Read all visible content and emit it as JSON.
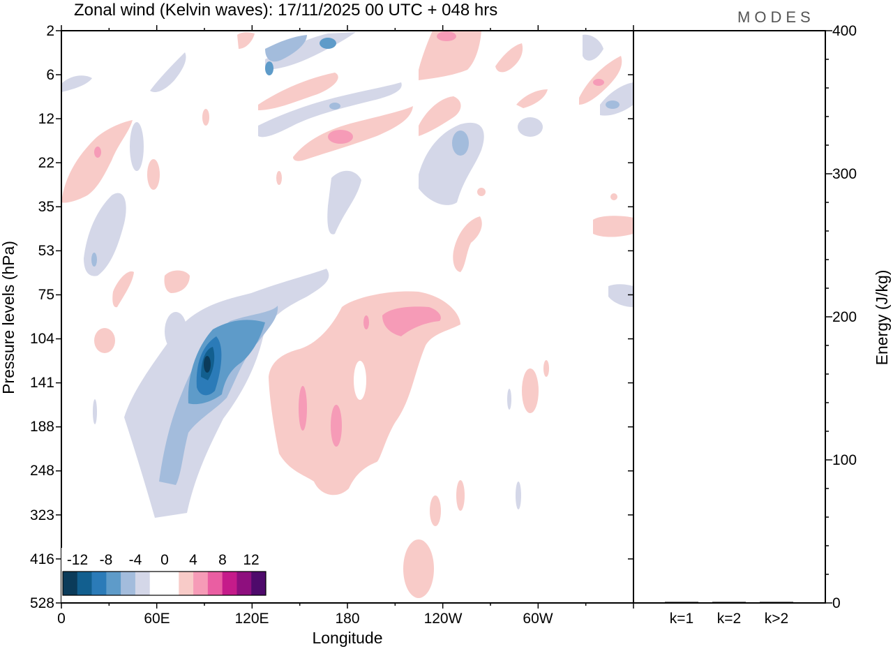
{
  "chart_data": {
    "type": "heatmap",
    "title": "Zonal wind (Kelvin waves):  17/11/2025  00 UTC  + 048 hrs",
    "brand": "MODES",
    "xlabel": "Longitude",
    "ylabel": "Pressure levels (hPa)",
    "y2label": "Energy (J/kg)",
    "x_ticks": [
      "0",
      "60E",
      "120E",
      "180",
      "120W",
      "60W"
    ],
    "y_ticks": [
      "2",
      "6",
      "12",
      "22",
      "35",
      "53",
      "75",
      "104",
      "141",
      "188",
      "248",
      "323",
      "416",
      "528"
    ],
    "y2_ticks": [
      "0",
      "100",
      "200",
      "300",
      "400"
    ],
    "y2lim": [
      0,
      400
    ],
    "energy_bars": {
      "categories": [
        "k=1",
        "k=2",
        "k>2"
      ],
      "values": [
        0.4,
        0.3,
        0.3
      ]
    },
    "colorbar": {
      "labels": [
        "-12",
        "-8",
        "-4",
        "0",
        "4",
        "8",
        "12"
      ],
      "colors": [
        "#0b3b5a",
        "#125f8f",
        "#2b7bb8",
        "#5e9bc9",
        "#a3bcdc",
        "#d4d7e8",
        "#ffffff",
        "#ffffff",
        "#f8cbc8",
        "#f69bb7",
        "#ea5ea2",
        "#c51b8a",
        "#8e0f7e",
        "#4e0a6b"
      ]
    },
    "field_features": [
      {
        "name": "negative-lobe-main",
        "lon_center": 95,
        "level_center": 141,
        "min_value": -12
      },
      {
        "name": "positive-lobe-main",
        "lon_center": 175,
        "level_center": 170,
        "max_value": 6
      },
      {
        "name": "positive-lobe-upper",
        "lon_center": 205,
        "level_center": 95,
        "max_value": 6
      }
    ]
  }
}
